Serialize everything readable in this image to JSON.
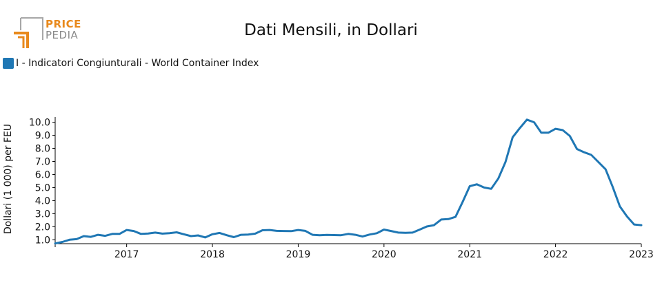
{
  "brand": {
    "line1": "PRICE",
    "line2": "PEDIA"
  },
  "chart_data": {
    "type": "line",
    "title": "Dati Mensili, in Dollari",
    "ylabel": "Dollari (1 000) per FEU",
    "xlabel": "",
    "ylim": [
      0.7,
      10.4
    ],
    "xlim": [
      "2016-03",
      "2023-01"
    ],
    "yticks": [
      "1.0",
      "2.0",
      "3.0",
      "4.0",
      "5.0",
      "6.0",
      "7.0",
      "8.0",
      "9.0",
      "10.0"
    ],
    "xticks": [
      "2017",
      "2018",
      "2019",
      "2020",
      "2021",
      "2022",
      "2023"
    ],
    "legend_position": "top-left",
    "colors": {
      "series": "#1f77b4"
    },
    "series": [
      {
        "name": "I - Indicatori Congiunturali - World Container Index",
        "x": [
          "2016-03",
          "2016-04",
          "2016-05",
          "2016-06",
          "2016-07",
          "2016-08",
          "2016-09",
          "2016-10",
          "2016-11",
          "2016-12",
          "2017-01",
          "2017-02",
          "2017-03",
          "2017-04",
          "2017-05",
          "2017-06",
          "2017-07",
          "2017-08",
          "2017-09",
          "2017-10",
          "2017-11",
          "2017-12",
          "2018-01",
          "2018-02",
          "2018-03",
          "2018-04",
          "2018-05",
          "2018-06",
          "2018-07",
          "2018-08",
          "2018-09",
          "2018-10",
          "2018-11",
          "2018-12",
          "2019-01",
          "2019-02",
          "2019-03",
          "2019-04",
          "2019-05",
          "2019-06",
          "2019-07",
          "2019-08",
          "2019-09",
          "2019-10",
          "2019-11",
          "2019-12",
          "2020-01",
          "2020-02",
          "2020-03",
          "2020-04",
          "2020-05",
          "2020-06",
          "2020-07",
          "2020-08",
          "2020-09",
          "2020-10",
          "2020-11",
          "2020-12",
          "2021-01",
          "2021-02",
          "2021-03",
          "2021-04",
          "2021-05",
          "2021-06",
          "2021-07",
          "2021-08",
          "2021-09",
          "2021-10",
          "2021-11",
          "2021-12",
          "2022-01",
          "2022-02",
          "2022-03",
          "2022-04",
          "2022-05",
          "2022-06",
          "2022-07",
          "2022-08",
          "2022-09",
          "2022-10",
          "2022-11",
          "2022-12",
          "2023-01"
        ],
        "values": [
          0.72,
          0.83,
          1.0,
          1.05,
          1.28,
          1.22,
          1.38,
          1.3,
          1.45,
          1.45,
          1.75,
          1.67,
          1.45,
          1.48,
          1.55,
          1.47,
          1.5,
          1.57,
          1.42,
          1.28,
          1.33,
          1.18,
          1.42,
          1.52,
          1.35,
          1.2,
          1.38,
          1.4,
          1.47,
          1.73,
          1.75,
          1.68,
          1.67,
          1.66,
          1.75,
          1.68,
          1.38,
          1.35,
          1.37,
          1.36,
          1.35,
          1.45,
          1.38,
          1.25,
          1.4,
          1.5,
          1.78,
          1.67,
          1.55,
          1.53,
          1.55,
          1.78,
          2.02,
          2.12,
          2.55,
          2.58,
          2.75,
          3.9,
          5.1,
          5.25,
          5.0,
          4.9,
          5.7,
          6.95,
          8.85,
          9.55,
          10.2,
          10.0,
          9.2,
          9.2,
          9.5,
          9.4,
          8.95,
          7.95,
          7.7,
          7.5,
          6.95,
          6.4,
          5.05,
          3.55,
          2.78,
          2.17,
          2.12
        ]
      }
    ]
  }
}
